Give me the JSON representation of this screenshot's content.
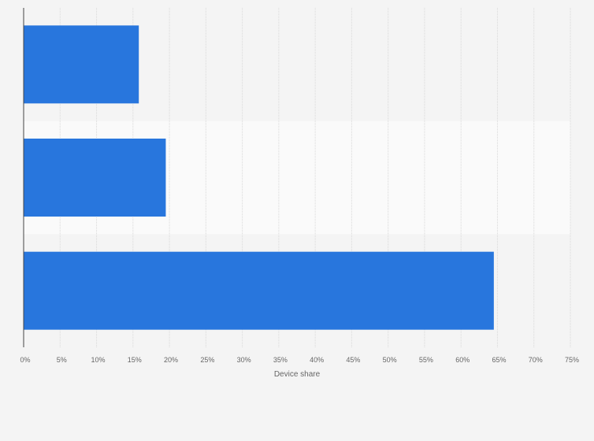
{
  "chart_data": {
    "type": "bar",
    "orientation": "horizontal",
    "categories": [
      "",
      "",
      ""
    ],
    "values": [
      15.8,
      19.5,
      64.5
    ],
    "title": "",
    "xlabel": "Device share",
    "ylabel": "",
    "xlim": [
      0,
      75
    ],
    "x_ticks": [
      "0%",
      "5%",
      "10%",
      "15%",
      "20%",
      "25%",
      "30%",
      "35%",
      "40%",
      "45%",
      "50%",
      "55%",
      "60%",
      "65%",
      "70%",
      "75%"
    ],
    "grid": "vertical",
    "legend": "none",
    "colors": {
      "bar": "#2876dd",
      "background": "#f4f4f4",
      "band_alternate": "#fafafa",
      "grid": "#d9d9d9",
      "axis": "#444444",
      "text": "#666666"
    }
  }
}
